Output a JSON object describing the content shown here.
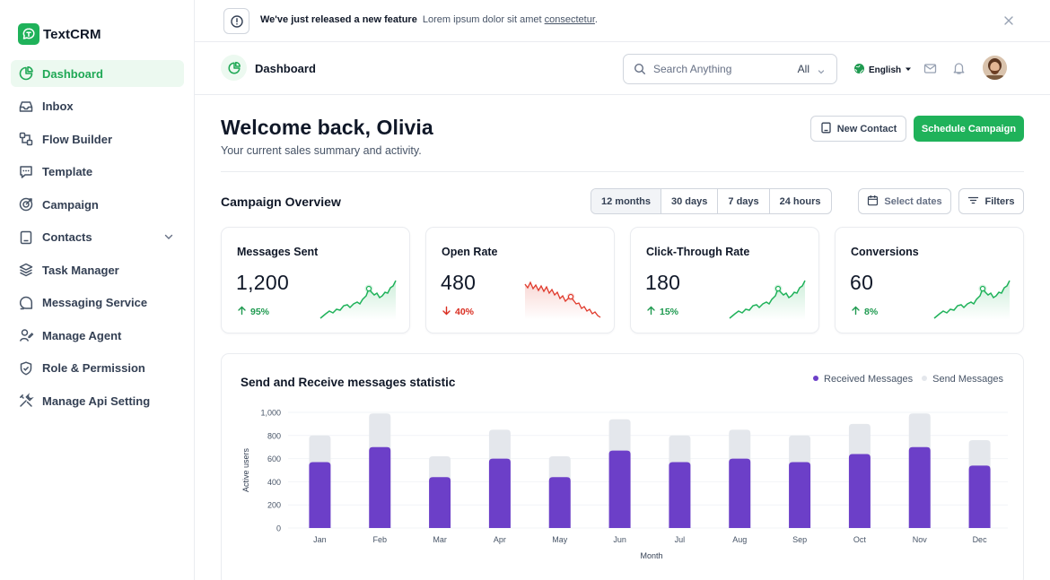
{
  "brand": {
    "name": "TextCRM",
    "color": "#1fb25a"
  },
  "sidebar": {
    "items": [
      {
        "label": "Dashboard",
        "icon": "dashboard-icon",
        "active": true
      },
      {
        "label": "Inbox",
        "icon": "inbox-icon"
      },
      {
        "label": "Flow Builder",
        "icon": "flow-builder-icon"
      },
      {
        "label": "Template",
        "icon": "template-icon"
      },
      {
        "label": "Campaign",
        "icon": "campaign-icon"
      },
      {
        "label": "Contacts",
        "icon": "contacts-icon",
        "expandable": true
      },
      {
        "label": "Task Manager",
        "icon": "layers-icon"
      },
      {
        "label": "Messaging Service",
        "icon": "messaging-icon"
      },
      {
        "label": "Manage Agent",
        "icon": "agent-icon"
      },
      {
        "label": "Role & Permission",
        "icon": "shield-icon"
      },
      {
        "label": "Manage Api Setting",
        "icon": "tools-icon"
      }
    ]
  },
  "banner": {
    "bold": "We've just released a new feature",
    "text": "Lorem ipsum dolor sit amet",
    "link": "consectetur",
    "suffix": "."
  },
  "header": {
    "title": "Dashboard",
    "search_placeholder": "Search Anything",
    "search_scope": "All",
    "language": "English"
  },
  "main": {
    "welcome": "Welcome back, Olivia",
    "subtitle": "Your current sales summary and activity.",
    "new_contact": "New Contact",
    "schedule_campaign": "Schedule Campaign",
    "overview_title": "Campaign Overview",
    "ranges": [
      "12 months",
      "30 days",
      "7 days",
      "24 hours"
    ],
    "selected_range": "12 months",
    "select_dates": "Select dates",
    "filters": "Filters"
  },
  "cards": [
    {
      "title": "Messages Sent",
      "value": "1,200",
      "change": "95%",
      "trend": "up"
    },
    {
      "title": "Open Rate",
      "value": "480",
      "change": "40%",
      "trend": "down"
    },
    {
      "title": "Click-Through Rate",
      "value": "180",
      "change": "15%",
      "trend": "up"
    },
    {
      "title": "Conversions",
      "value": "60",
      "change": "8%",
      "trend": "up"
    }
  ],
  "colors": {
    "up": "#1fb25a",
    "down": "#e0392b",
    "received": "#6c3fc8",
    "send": "#e4e7ec"
  },
  "chart_data": {
    "type": "bar",
    "title": "Send and Receive messages statistic",
    "xlabel": "Month",
    "ylabel": "Active users",
    "ylim": [
      0,
      1000
    ],
    "yticks": [
      "0",
      "200",
      "400",
      "600",
      "800",
      "1,000"
    ],
    "categories": [
      "Jan",
      "Feb",
      "Mar",
      "Apr",
      "May",
      "Jun",
      "Jul",
      "Aug",
      "Sep",
      "Oct",
      "Nov",
      "Dec"
    ],
    "series": [
      {
        "name": "Received Messages",
        "values": [
          570,
          700,
          440,
          600,
          440,
          670,
          570,
          600,
          570,
          640,
          700,
          540
        ]
      },
      {
        "name": "Send Messages",
        "values": [
          800,
          990,
          620,
          850,
          620,
          940,
          800,
          850,
          800,
          900,
          990,
          760
        ]
      }
    ],
    "legend": "top-right"
  }
}
